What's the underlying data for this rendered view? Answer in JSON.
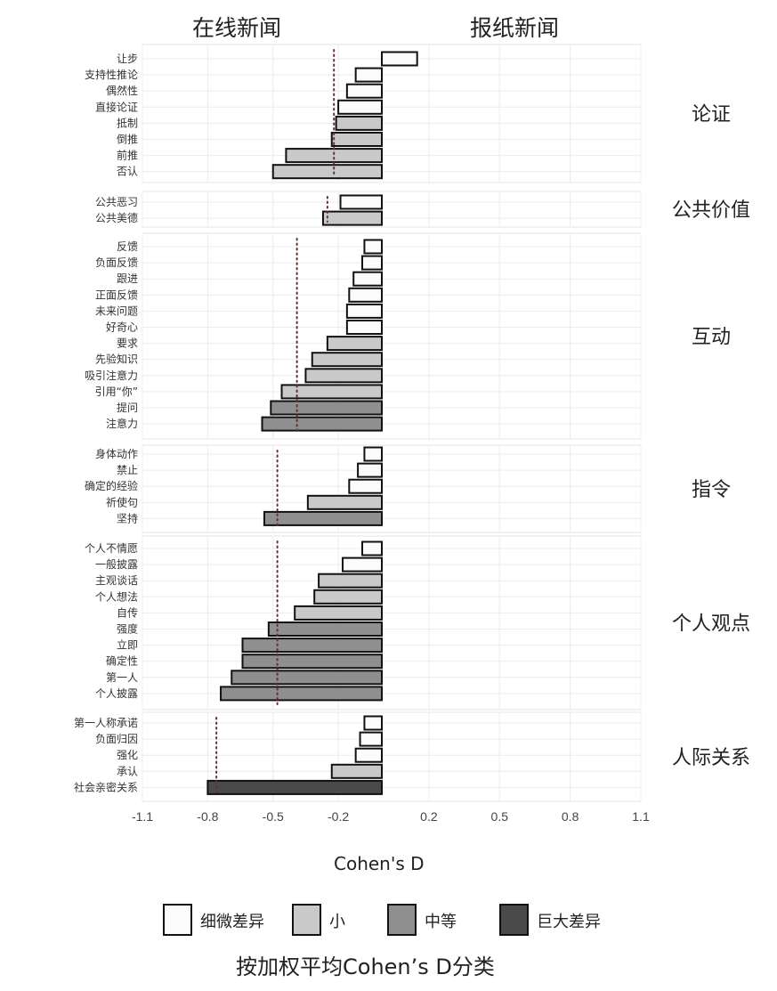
{
  "panel_titles": {
    "left": "在线新闻",
    "right": "报纸新闻"
  },
  "xlabel": "Cohen's D",
  "caption": "按加权平均Cohen’s D分类",
  "legend": [
    {
      "label": "细微差异",
      "color": "#fbfbfb"
    },
    {
      "label": "小",
      "color": "#c9c9c9"
    },
    {
      "label": "中等",
      "color": "#8f8f8f"
    },
    {
      "label": "巨大差异",
      "color": "#4a4a4a"
    }
  ],
  "chart_data": {
    "type": "bar",
    "orientation": "horizontal",
    "xlabel": "Cohen's D",
    "xlim": [
      -1.1,
      1.1
    ],
    "xticks": [
      "-1.1",
      "-0.8",
      "-0.5",
      "-0.2",
      "0.2",
      "0.5",
      "0.8",
      "1.1"
    ],
    "grid": true,
    "facets": [
      {
        "name": "论证",
        "weighted_mean": -0.22,
        "bars": [
          {
            "label": "让步",
            "value": 0.15,
            "category": "细微差异"
          },
          {
            "label": "支持性推论",
            "value": -0.12,
            "category": "细微差异"
          },
          {
            "label": "偶然性",
            "value": -0.16,
            "category": "细微差异"
          },
          {
            "label": "直接论证",
            "value": -0.2,
            "category": "细微差异"
          },
          {
            "label": "抵制",
            "value": -0.21,
            "category": "小"
          },
          {
            "label": "倒推",
            "value": -0.23,
            "category": "小"
          },
          {
            "label": "前推",
            "value": -0.44,
            "category": "小"
          },
          {
            "label": "否认",
            "value": -0.5,
            "category": "小"
          }
        ]
      },
      {
        "name": "公共价值",
        "weighted_mean": -0.25,
        "bars": [
          {
            "label": "公共恶习",
            "value": -0.19,
            "category": "细微差异"
          },
          {
            "label": "公共美德",
            "value": -0.27,
            "category": "小"
          }
        ]
      },
      {
        "name": "互动",
        "weighted_mean": -0.39,
        "bars": [
          {
            "label": "反馈",
            "value": -0.08,
            "category": "细微差异"
          },
          {
            "label": "负面反馈",
            "value": -0.09,
            "category": "细微差异"
          },
          {
            "label": "跟进",
            "value": -0.13,
            "category": "细微差异"
          },
          {
            "label": "正面反馈",
            "value": -0.15,
            "category": "细微差异"
          },
          {
            "label": "未来问题",
            "value": -0.16,
            "category": "细微差异"
          },
          {
            "label": "好奇心",
            "value": -0.16,
            "category": "细微差异"
          },
          {
            "label": "要求",
            "value": -0.25,
            "category": "小"
          },
          {
            "label": "先验知识",
            "value": -0.32,
            "category": "小"
          },
          {
            "label": "吸引注意力",
            "value": -0.35,
            "category": "小"
          },
          {
            "label": "引用“你”",
            "value": -0.46,
            "category": "小"
          },
          {
            "label": "提问",
            "value": -0.51,
            "category": "中等"
          },
          {
            "label": "注意力",
            "value": -0.55,
            "category": "中等"
          }
        ]
      },
      {
        "name": "指令",
        "weighted_mean": -0.48,
        "bars": [
          {
            "label": "身体动作",
            "value": -0.08,
            "category": "细微差异"
          },
          {
            "label": "禁止",
            "value": -0.11,
            "category": "细微差异"
          },
          {
            "label": "确定的经验",
            "value": -0.15,
            "category": "细微差异"
          },
          {
            "label": "祈使句",
            "value": -0.34,
            "category": "小"
          },
          {
            "label": "坚持",
            "value": -0.54,
            "category": "中等"
          }
        ]
      },
      {
        "name": "个人观点",
        "weighted_mean": -0.48,
        "bars": [
          {
            "label": "个人不情愿",
            "value": -0.09,
            "category": "细微差异"
          },
          {
            "label": "一般披露",
            "value": -0.18,
            "category": "细微差异"
          },
          {
            "label": "主观谈话",
            "value": -0.29,
            "category": "小"
          },
          {
            "label": "个人想法",
            "value": -0.31,
            "category": "小"
          },
          {
            "label": "自传",
            "value": -0.4,
            "category": "小"
          },
          {
            "label": "强度",
            "value": -0.52,
            "category": "中等"
          },
          {
            "label": "立即",
            "value": -0.64,
            "category": "中等"
          },
          {
            "label": "确定性",
            "value": -0.64,
            "category": "中等"
          },
          {
            "label": "第一人",
            "value": -0.69,
            "category": "中等"
          },
          {
            "label": "个人披露",
            "value": -0.74,
            "category": "中等"
          }
        ]
      },
      {
        "name": "人际关系",
        "weighted_mean": -0.76,
        "bars": [
          {
            "label": "第一人称承诺",
            "value": -0.08,
            "category": "细微差异"
          },
          {
            "label": "负面归因",
            "value": -0.1,
            "category": "细微差异"
          },
          {
            "label": "强化",
            "value": -0.12,
            "category": "细微差异"
          },
          {
            "label": "承认",
            "value": -0.23,
            "category": "小"
          },
          {
            "label": "社会亲密关系",
            "value": -0.8,
            "category": "巨大差异"
          }
        ]
      }
    ]
  }
}
